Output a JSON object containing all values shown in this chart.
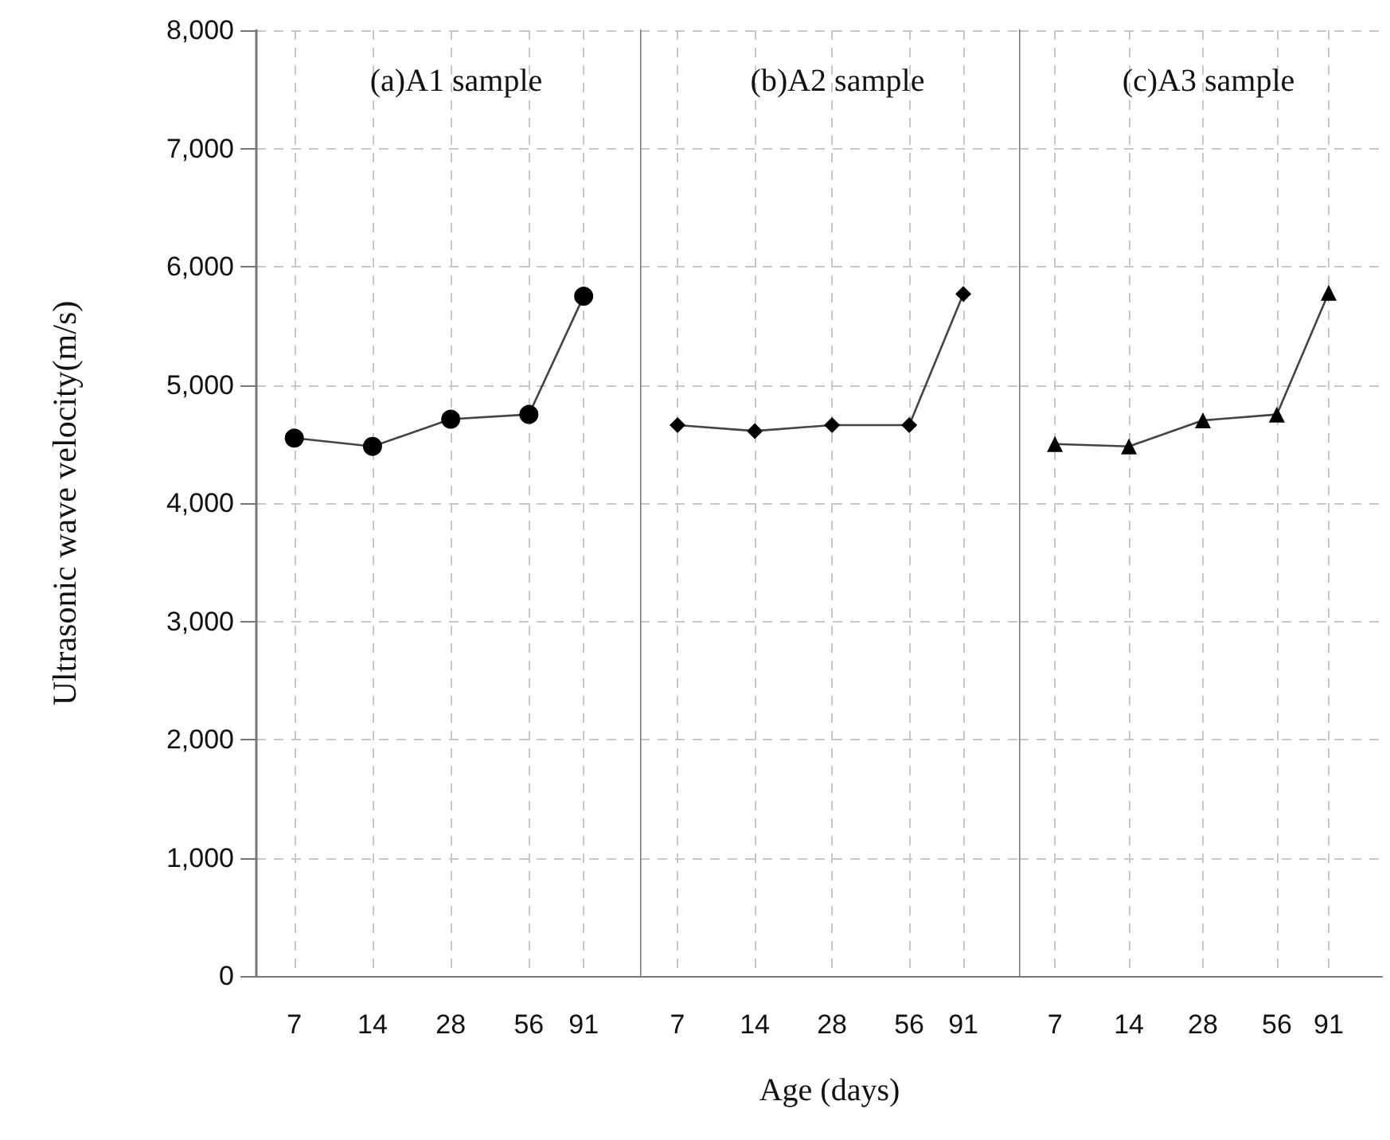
{
  "chart_data": [
    {
      "type": "line",
      "title": "(a)A1 sample",
      "ylabel": "Ultrasonic wave velocity(m/s)",
      "x": [
        7,
        14,
        28,
        56,
        91
      ],
      "log": "x",
      "xlim": [
        5,
        150
      ],
      "xticks": [
        7,
        14,
        28,
        56,
        91
      ],
      "ylim": [
        0,
        8000
      ],
      "yticks": [
        0,
        {
          "value": 1000,
          "label": "1,000"
        },
        {
          "value": 2000,
          "label": "2,000"
        },
        {
          "value": 3000,
          "label": "3,000"
        },
        {
          "value": 4000,
          "label": "4,000"
        },
        {
          "value": 5000,
          "label": "5,000"
        },
        {
          "value": 6000,
          "label": "6,000"
        },
        {
          "value": 7000,
          "label": "7,000"
        },
        {
          "value": 8000,
          "label": "8,000"
        }
      ],
      "grid": true,
      "marker": "circle",
      "line_style": "solid",
      "series": [
        {
          "color": "#000000",
          "values": [
            4550,
            4480,
            4710,
            4750,
            5750
          ]
        }
      ]
    },
    {
      "type": "line",
      "title": "(b)A2 sample",
      "xlabel": "Age (days)",
      "x": [
        7,
        14,
        28,
        56,
        91
      ],
      "log": "x",
      "xlim": [
        5,
        150
      ],
      "xticks": [
        7,
        14,
        28,
        56,
        91
      ],
      "ylim": [
        0,
        8000
      ],
      "yticks": [
        0,
        1000,
        2000,
        3000,
        4000,
        5000,
        6000,
        7000,
        8000
      ],
      "tick_labels": "x",
      "grid": true,
      "marker": "diamond",
      "line_style": "solid",
      "series": [
        {
          "color": "#000000",
          "values": [
            4660,
            4610,
            4660,
            4660,
            5770
          ]
        }
      ]
    },
    {
      "type": "line",
      "title": "(c)A3 sample",
      "x": [
        7,
        14,
        28,
        56,
        91
      ],
      "log": "x",
      "xlim": [
        5,
        150
      ],
      "xticks": [
        7,
        14,
        28,
        56,
        91
      ],
      "ylim": [
        0,
        8000
      ],
      "yticks": [
        0,
        1000,
        2000,
        3000,
        4000,
        5000,
        6000,
        7000,
        8000
      ],
      "tick_labels": "x",
      "grid": true,
      "marker": "triangle",
      "line_style": "solid",
      "series": [
        {
          "color": "#000000",
          "values": [
            4500,
            4480,
            4700,
            4750,
            5780
          ]
        }
      ]
    }
  ]
}
